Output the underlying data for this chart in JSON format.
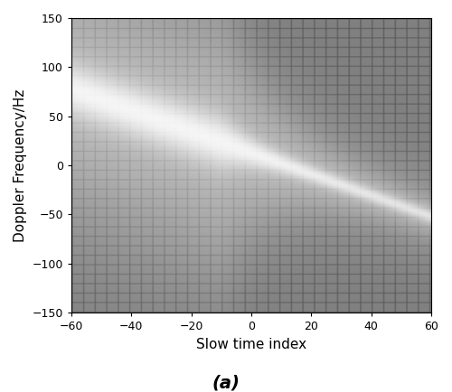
{
  "xlim": [
    -60,
    60
  ],
  "ylim": [
    -150,
    150
  ],
  "xlabel": "Slow time index",
  "ylabel": "Doppler Frequency/Hz",
  "xlabel_fontsize": 11,
  "ylabel_fontsize": 11,
  "xticks": [
    -60,
    -40,
    -20,
    0,
    20,
    40,
    60
  ],
  "yticks": [
    -150,
    -100,
    -50,
    0,
    50,
    100,
    150
  ],
  "caption": "(a)",
  "caption_fontsize": 14,
  "figsize": [
    5.0,
    4.34
  ],
  "dpi": 100,
  "bg_gray": 0.5,
  "grid_dark": 0.35,
  "grid_cols": 30,
  "grid_rows": 30,
  "line_slope": -1.08,
  "line_intercept": 12.0,
  "sigma_core": 2.0,
  "sigma_mid": 7.0,
  "sigma_broad": 20.0,
  "streak_start_x": -60,
  "streak_end_x": 60,
  "fan_sigma_x": 15.0,
  "fan_x_center": -45
}
